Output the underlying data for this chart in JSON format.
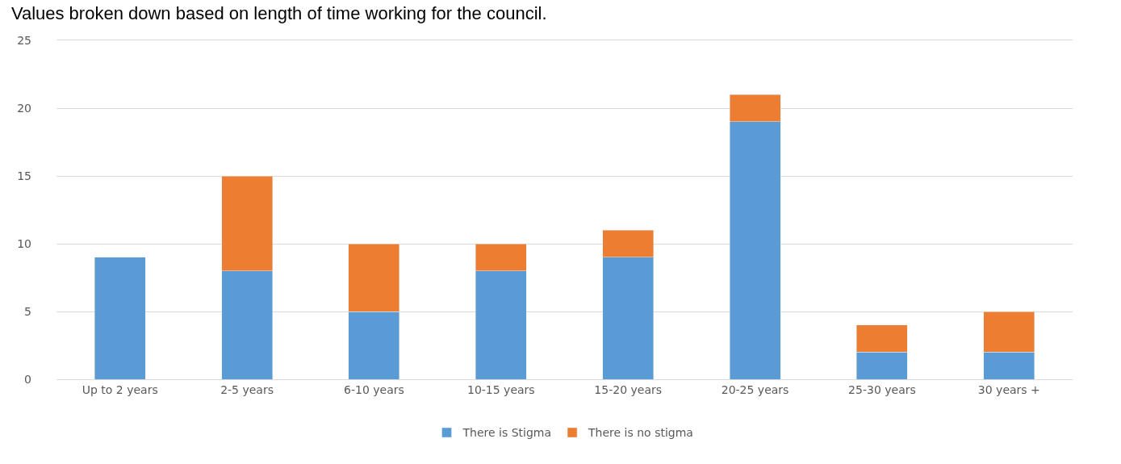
{
  "chart_data": {
    "type": "bar",
    "title": "Values broken down based on length of time working for the council.",
    "categories": [
      "Up to 2 years",
      "2-5 years",
      "6-10 years",
      "10-15 years",
      "15-20 years",
      "20-25 years",
      "25-30 years",
      "30 years +"
    ],
    "series": [
      {
        "name": "There is Stigma",
        "color": "#5b9bd5",
        "values": [
          9,
          8,
          5,
          8,
          9,
          19,
          2,
          2
        ]
      },
      {
        "name": "There is no stigma",
        "color": "#ed7d31",
        "values": [
          null,
          7,
          5,
          2,
          2,
          2,
          2,
          3
        ]
      }
    ],
    "stacked": true,
    "ylim": [
      0,
      25
    ],
    "yticks": [
      0,
      5,
      10,
      15,
      20,
      25
    ],
    "grid": "y",
    "legend": "bottom"
  }
}
